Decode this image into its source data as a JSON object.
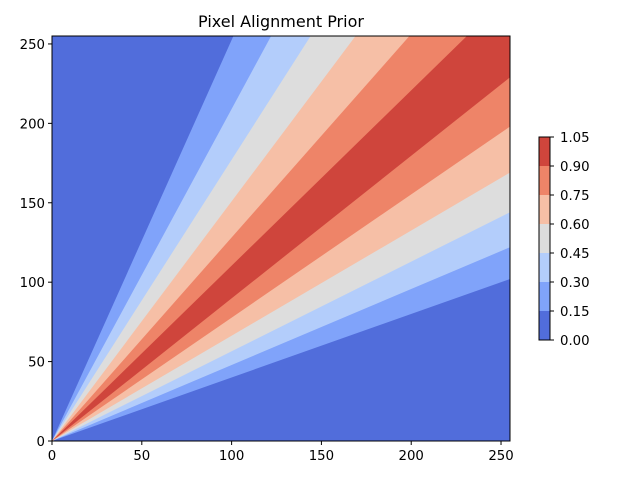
{
  "chart_data": {
    "type": "contourf",
    "title": "Pixel Alignment Prior",
    "xlabel": "",
    "ylabel": "",
    "xlim": [
      0,
      255
    ],
    "ylim": [
      0,
      255
    ],
    "xticks": [
      0,
      50,
      100,
      150,
      200,
      250
    ],
    "yticks": [
      0,
      50,
      100,
      150,
      200,
      250
    ],
    "xtick_labels": [
      "0",
      "50",
      "100",
      "150",
      "200",
      "250"
    ],
    "ytick_labels": [
      "0",
      "50",
      "100",
      "150",
      "200",
      "250"
    ],
    "colormap": "coolwarm",
    "grid": false,
    "colorbar": {
      "levels": [
        0.0,
        0.15,
        0.3,
        0.45,
        0.6,
        0.75,
        0.9,
        1.05
      ],
      "tick_labels": [
        "0.00",
        "0.15",
        "0.30",
        "0.45",
        "0.60",
        "0.75",
        "0.90",
        "1.05"
      ],
      "colors": [
        "#516ddb",
        "#80a3fa",
        "#b3cdfb",
        "#dddddd",
        "#f6bfa6",
        "#ee8468",
        "#cf453c"
      ]
    },
    "bands": [
      {
        "level_range": [
          0.0,
          0.15
        ],
        "lower_boundary": null,
        "upper_boundary": null
      },
      {
        "level_range": [
          0.15,
          0.3
        ],
        "lower_boundary": {
          "at_x": 255,
          "y": 102
        },
        "upper_boundary": {
          "at_y": 255,
          "x": 101
        }
      },
      {
        "level_range": [
          0.3,
          0.45
        ],
        "lower_boundary": {
          "at_x": 255,
          "y": 122
        },
        "upper_boundary": {
          "at_y": 255,
          "x": 122
        }
      },
      {
        "level_range": [
          0.45,
          0.6
        ],
        "lower_boundary": {
          "at_x": 255,
          "y": 144
        },
        "upper_boundary": {
          "at_y": 255,
          "x": 144
        }
      },
      {
        "level_range": [
          0.6,
          0.75
        ],
        "lower_boundary": {
          "at_x": 255,
          "y": 169
        },
        "upper_boundary": {
          "at_y": 255,
          "x": 169
        }
      },
      {
        "level_range": [
          0.75,
          0.9
        ],
        "lower_boundary": {
          "at_x": 255,
          "y": 198
        },
        "upper_boundary": {
          "at_y": 255,
          "x": 199
        }
      },
      {
        "level_range": [
          0.9,
          1.05
        ],
        "lower_boundary": {
          "at_x": 255,
          "y": 229
        },
        "upper_boundary": {
          "at_y": 255,
          "x": 231
        }
      }
    ]
  }
}
